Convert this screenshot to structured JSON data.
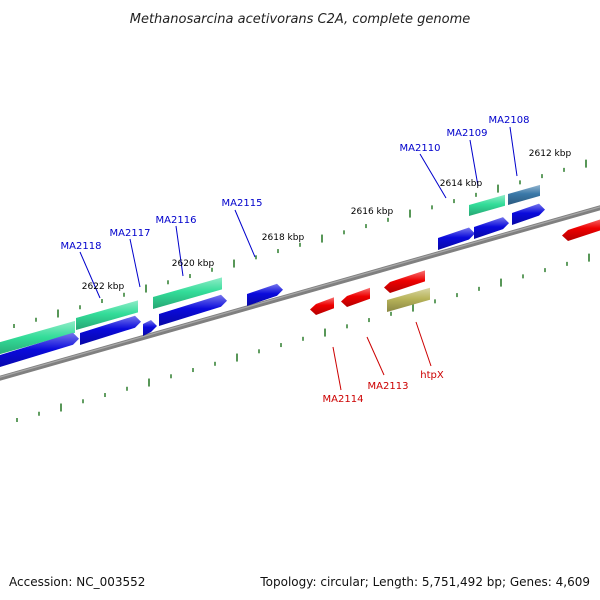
{
  "title": "Methanosarcina acetivorans C2A, complete genome",
  "footer": {
    "accession": "Accession: NC_003552",
    "summary": "Topology: circular; Length: 5,751,492 bp; Genes: 4,609"
  },
  "colors": {
    "backbone": "#808080",
    "tick": "#2e7d2e",
    "label_top": "#0000cc",
    "label_bottom": "#cc0000",
    "gene_blue": "#0a0adc",
    "gene_red": "#ee0000",
    "gene_green": "#33dd99",
    "gene_steel": "#3a78a8",
    "gene_olive": "#b8b45a"
  },
  "scale_labels": [
    "2612 kbp",
    "2614 kbp",
    "2616 kbp",
    "2618 kbp",
    "2620 kbp",
    "2622 kbp"
  ],
  "gene_labels": {
    "top": [
      "MA2108",
      "MA2109",
      "MA2110",
      "MA2115",
      "MA2116",
      "MA2117",
      "MA2118"
    ],
    "bottom": [
      "MA2113",
      "MA2114",
      "htpX"
    ]
  }
}
